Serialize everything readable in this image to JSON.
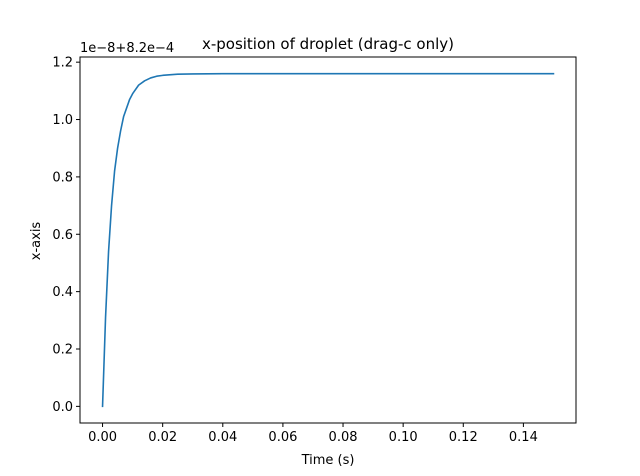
{
  "chart_data": {
    "type": "line",
    "title": "x-position of droplet (drag-c only)",
    "xlabel": "Time (s)",
    "ylabel": "x-axis",
    "y_offset_label": "1e−8+8.2e−4",
    "xlim": [
      -0.0075,
      0.1575
    ],
    "ylim": [
      -0.058,
      1.218
    ],
    "x_ticks": [
      0.0,
      0.02,
      0.04,
      0.06,
      0.08,
      0.1,
      0.12,
      0.14
    ],
    "x_tick_labels": [
      "0.00",
      "0.02",
      "0.04",
      "0.06",
      "0.08",
      "0.10",
      "0.12",
      "0.14"
    ],
    "y_ticks": [
      0.0,
      0.2,
      0.4,
      0.6,
      0.8,
      1.0,
      1.2
    ],
    "y_tick_labels": [
      "0.0",
      "0.2",
      "0.4",
      "0.6",
      "0.8",
      "1.0",
      "1.2"
    ],
    "grid": false,
    "series": [
      {
        "color": "#1f77b4",
        "x": [
          0.0,
          0.001,
          0.002,
          0.003,
          0.004,
          0.005,
          0.006,
          0.007,
          0.008,
          0.009,
          0.01,
          0.012,
          0.014,
          0.016,
          0.018,
          0.02,
          0.025,
          0.03,
          0.04,
          0.06,
          0.08,
          0.1,
          0.12,
          0.15
        ],
        "y": [
          0.0,
          0.31,
          0.54,
          0.7,
          0.82,
          0.9,
          0.96,
          1.01,
          1.04,
          1.07,
          1.09,
          1.12,
          1.135,
          1.145,
          1.151,
          1.154,
          1.158,
          1.159,
          1.16,
          1.16,
          1.16,
          1.16,
          1.16,
          1.16
        ]
      }
    ]
  }
}
